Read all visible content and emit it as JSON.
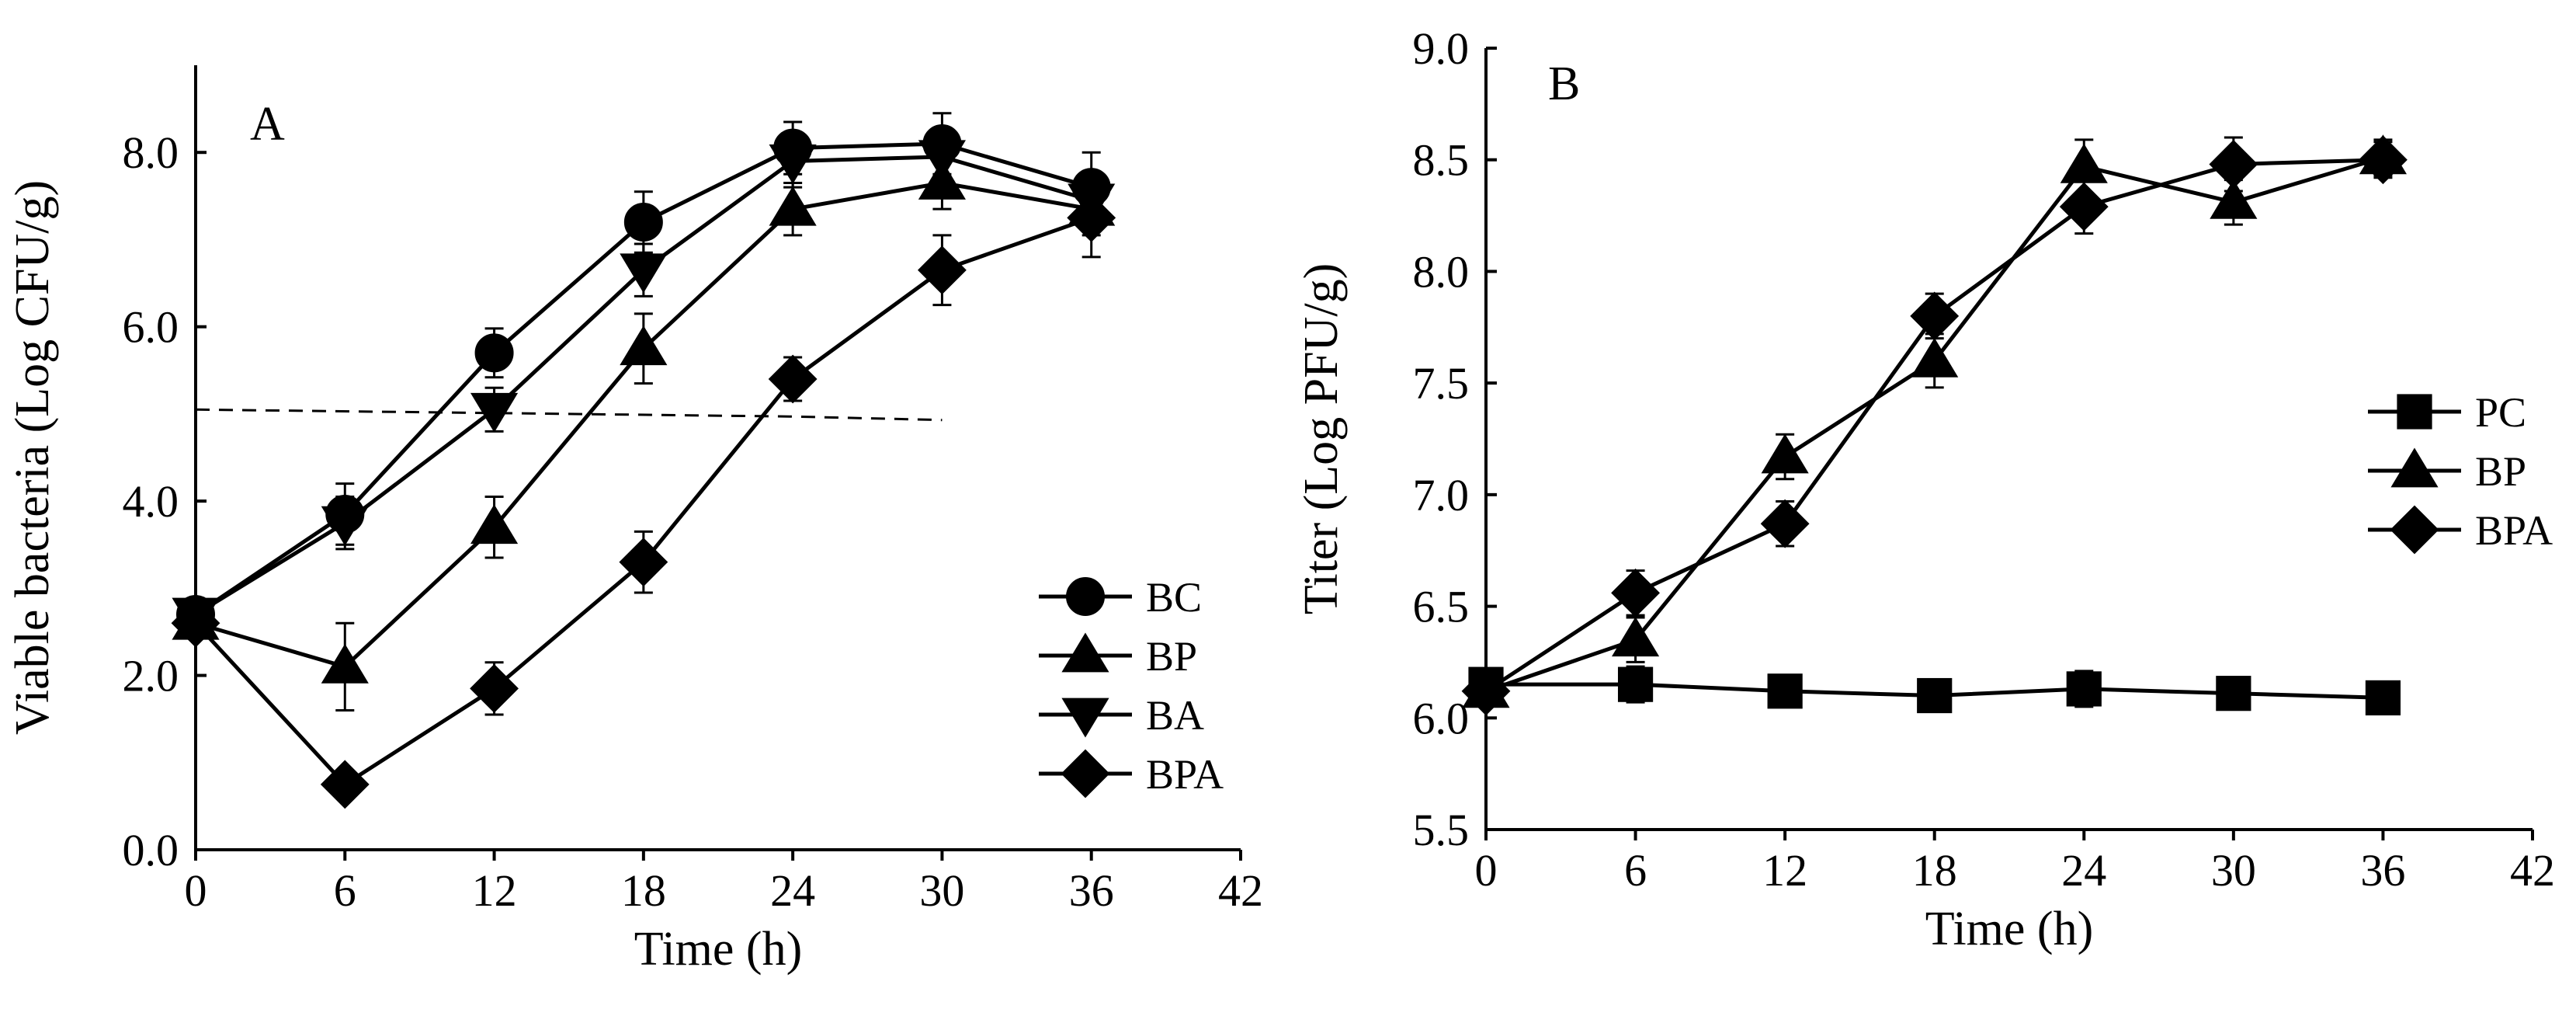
{
  "chart_data": [
    {
      "panel": "A",
      "type": "line",
      "panel_label": "A",
      "xlabel": "Time (h)",
      "ylabel": "Viable bacteria (Log CFU/g)",
      "xlim": [
        0,
        42
      ],
      "ylim": [
        0,
        9
      ],
      "xticks": [
        0,
        6,
        12,
        18,
        24,
        30,
        36,
        42
      ],
      "xtick_labels": [
        "0",
        "6",
        "12",
        "18",
        "24",
        "30",
        "36",
        "42"
      ],
      "yticks": [
        0,
        2,
        4,
        6,
        8
      ],
      "ytick_labels": [
        "0.0",
        "2.0",
        "4.0",
        "6.0",
        "8.0"
      ],
      "legend_position": "bottom-right",
      "x": [
        0,
        6,
        12,
        18,
        24,
        30,
        36
      ],
      "series": [
        {
          "name": "BC",
          "marker": "circle",
          "values": [
            2.7,
            3.85,
            5.7,
            7.2,
            8.05,
            8.1,
            7.6
          ],
          "errors": [
            0.1,
            0.35,
            0.28,
            0.35,
            0.3,
            0.35,
            0.4
          ]
        },
        {
          "name": "BP",
          "marker": "triangle-up",
          "values": [
            2.6,
            2.1,
            3.7,
            5.75,
            7.35,
            7.65,
            7.35
          ],
          "errors": [
            0.1,
            0.5,
            0.35,
            0.4,
            0.3,
            0.3,
            0.3
          ]
        },
        {
          "name": "BA",
          "marker": "triangle-down",
          "values": [
            2.7,
            3.75,
            5.05,
            6.65,
            7.9,
            7.95,
            7.45
          ],
          "errors": [
            0.1,
            0.3,
            0.25,
            0.3,
            0.3,
            0.3,
            0.3
          ]
        },
        {
          "name": "BPA",
          "marker": "diamond",
          "values": [
            2.6,
            0.75,
            1.85,
            3.3,
            5.4,
            6.65,
            7.25
          ],
          "errors": [
            0.1,
            0.1,
            0.3,
            0.35,
            0.25,
            0.4,
            0.45
          ]
        }
      ],
      "reference_line": {
        "style": "dashed",
        "x": [
          0,
          24,
          30
        ],
        "y": [
          5.05,
          4.97,
          4.93
        ]
      }
    },
    {
      "panel": "B",
      "type": "line",
      "panel_label": "B",
      "xlabel": "Time (h)",
      "ylabel": "Titer (Log PFU/g)",
      "xlim": [
        0,
        42
      ],
      "ylim": [
        5.5,
        9.0
      ],
      "xticks": [
        0,
        6,
        12,
        18,
        24,
        30,
        36,
        42
      ],
      "xtick_labels": [
        "0",
        "6",
        "12",
        "18",
        "24",
        "30",
        "36",
        "42"
      ],
      "yticks": [
        5.5,
        6.0,
        6.5,
        7.0,
        7.5,
        8.0,
        8.5,
        9.0
      ],
      "ytick_labels": [
        "5.5",
        "6.0",
        "6.5",
        "7.0",
        "7.5",
        "8.0",
        "8.5",
        "9.0"
      ],
      "legend_position": "right",
      "x": [
        0,
        6,
        12,
        18,
        24,
        30,
        36
      ],
      "series": [
        {
          "name": "PC",
          "marker": "square",
          "values": [
            6.15,
            6.15,
            6.12,
            6.1,
            6.13,
            6.11,
            6.09
          ],
          "errors": [
            0.06,
            0.08,
            0.06,
            0.07,
            0.08,
            0.07,
            0.0
          ]
        },
        {
          "name": "BP",
          "marker": "triangle-up",
          "values": [
            6.12,
            6.35,
            7.17,
            7.6,
            8.47,
            8.31,
            8.51
          ],
          "errors": [
            0.05,
            0.1,
            0.1,
            0.12,
            0.12,
            0.1,
            0.08
          ]
        },
        {
          "name": "BPA",
          "marker": "diamond",
          "values": [
            6.12,
            6.56,
            6.87,
            7.8,
            8.29,
            8.48,
            8.5
          ],
          "errors": [
            0.05,
            0.1,
            0.1,
            0.1,
            0.12,
            0.12,
            0.08
          ]
        }
      ]
    }
  ]
}
